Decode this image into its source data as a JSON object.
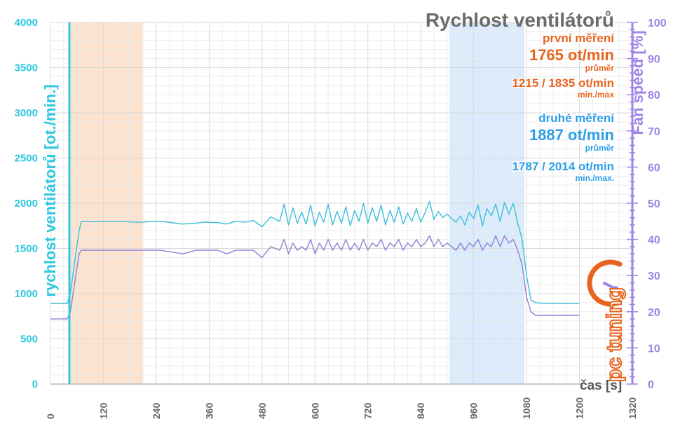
{
  "chart_data": {
    "type": "line",
    "title": "Rychlost ventilátorů",
    "xlabel": "čas [s]",
    "ylabel": "rychlost ventilátorů [ot./min.]",
    "y2label": "Fan speed [%]",
    "xlim": [
      0,
      1320
    ],
    "ylim": [
      0,
      4000
    ],
    "y2lim": [
      0,
      100
    ],
    "xticks": [
      0,
      120,
      240,
      360,
      480,
      600,
      720,
      840,
      960,
      1080,
      1200,
      1320
    ],
    "yticks": [
      0,
      500,
      1000,
      1500,
      2000,
      2500,
      3000,
      3500,
      4000
    ],
    "y2ticks": [
      0,
      10,
      20,
      30,
      40,
      50,
      60,
      70,
      80,
      90,
      100
    ],
    "grid": true,
    "shaded_regions": [
      {
        "x": [
          45,
          210
        ],
        "color": "#fbe3cf"
      },
      {
        "x": [
          905,
          1075
        ],
        "color": "#dcebfb"
      }
    ],
    "series": [
      {
        "axis": "left",
        "color": "#3bbfdb",
        "x": [
          0,
          38,
          45,
          55,
          65,
          70,
          100,
          150,
          200,
          250,
          300,
          330,
          350,
          380,
          400,
          420,
          440,
          460,
          480,
          500,
          520,
          530,
          540,
          550,
          560,
          570,
          580,
          590,
          600,
          610,
          620,
          630,
          640,
          650,
          660,
          670,
          680,
          690,
          700,
          710,
          720,
          730,
          740,
          750,
          760,
          770,
          780,
          790,
          800,
          810,
          820,
          830,
          840,
          850,
          860,
          870,
          880,
          890,
          900,
          910,
          920,
          930,
          940,
          950,
          960,
          970,
          980,
          990,
          1000,
          1010,
          1020,
          1030,
          1040,
          1050,
          1060,
          1070,
          1080,
          1090,
          1100,
          1110,
          1150,
          1200
        ],
        "values": [
          890,
          890,
          1000,
          1350,
          1700,
          1800,
          1795,
          1800,
          1790,
          1800,
          1770,
          1780,
          1790,
          1785,
          1770,
          1800,
          1790,
          1810,
          1740,
          1850,
          1800,
          1990,
          1760,
          1950,
          1780,
          1900,
          1770,
          1980,
          1750,
          1900,
          1790,
          1990,
          1760,
          1910,
          1780,
          1960,
          1750,
          1920,
          1800,
          2000,
          1780,
          1950,
          1800,
          1980,
          1760,
          1920,
          1790,
          1960,
          1770,
          1890,
          1800,
          1940,
          1790,
          1900,
          2020,
          1820,
          1910,
          1840,
          1880,
          1830,
          1790,
          1860,
          1760,
          1900,
          1830,
          1980,
          1750,
          1940,
          1860,
          1990,
          1800,
          2010,
          1880,
          2000,
          1780,
          1600,
          1200,
          930,
          900,
          895,
          890,
          890
        ]
      },
      {
        "axis": "right",
        "color": "#8f7fd6",
        "x": [
          0,
          38,
          45,
          55,
          65,
          70,
          100,
          150,
          200,
          250,
          300,
          330,
          350,
          380,
          400,
          420,
          440,
          460,
          480,
          500,
          520,
          530,
          540,
          550,
          560,
          570,
          580,
          590,
          600,
          610,
          620,
          630,
          640,
          650,
          660,
          670,
          680,
          690,
          700,
          710,
          720,
          730,
          740,
          750,
          760,
          770,
          780,
          790,
          800,
          810,
          820,
          830,
          840,
          850,
          860,
          870,
          880,
          890,
          900,
          910,
          920,
          930,
          940,
          950,
          960,
          970,
          980,
          990,
          1000,
          1010,
          1020,
          1030,
          1040,
          1050,
          1060,
          1070,
          1080,
          1090,
          1100,
          1110,
          1150,
          1200
        ],
        "values": [
          18,
          18,
          20,
          28,
          36,
          37,
          37,
          37,
          37,
          37,
          36,
          37,
          37,
          37,
          36,
          37,
          37,
          37,
          35,
          38,
          37,
          40,
          36,
          39,
          37,
          38,
          37,
          40,
          36,
          39,
          37,
          40,
          37,
          39,
          37,
          40,
          37,
          39,
          37,
          40,
          37,
          39,
          38,
          40,
          37,
          39,
          38,
          40,
          37,
          39,
          38,
          40,
          38,
          39,
          41,
          38,
          40,
          38,
          39,
          38,
          37,
          39,
          37,
          39,
          38,
          40,
          37,
          39,
          38,
          41,
          38,
          41,
          39,
          40,
          37,
          33,
          24,
          20,
          19,
          19,
          19,
          19
        ]
      }
    ],
    "annotations": {
      "m1_label": "první měření",
      "m1_value": "1765 ot/min",
      "m1_avg": "průměr",
      "m1_range": "1215 / 1835 ot/min",
      "m1_range_label": "min./max",
      "m2_label": "druhé měření",
      "m2_value": "1887 ot/min",
      "m2_avg": "průměr",
      "m2_range": "1787 / 2014 ot/min",
      "m2_range_label": "min./max."
    },
    "colors": {
      "left_axis": "#2ec8e0",
      "right_axis": "#9d84e6",
      "first_measurement": "#e8641e",
      "second_measurement": "#2b9de8"
    }
  },
  "logo": {
    "text": "pc tuning",
    "icon": "tacho-icon"
  }
}
